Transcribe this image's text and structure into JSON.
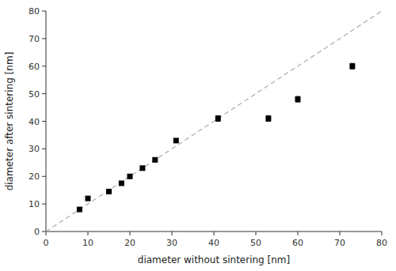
{
  "chart_data": {
    "type": "scatter",
    "xlabel": "diameter without sintering [nm]",
    "ylabel": "diameter after sintering [nm]",
    "xlim": [
      0,
      80
    ],
    "ylim": [
      0,
      80
    ],
    "xticks": [
      0,
      10,
      20,
      30,
      40,
      50,
      60,
      70,
      80
    ],
    "yticks": [
      0,
      10,
      20,
      30,
      40,
      50,
      60,
      70,
      80
    ],
    "grid": false,
    "series": [
      {
        "type": "line",
        "x": [
          0,
          80
        ],
        "values": [
          0,
          80
        ],
        "color": "#aaaaaa",
        "line_style": "dashed"
      },
      {
        "type": "scatter",
        "x": [
          8,
          10,
          15,
          18,
          20,
          23,
          26,
          31,
          41,
          53,
          60,
          73
        ],
        "values": [
          8,
          12,
          14.5,
          17.5,
          20,
          23,
          26,
          33,
          41,
          41,
          48,
          60
        ],
        "errors": [
          0,
          0,
          0,
          0,
          0,
          0,
          0,
          0,
          1,
          1,
          1,
          1
        ],
        "color": "#000000",
        "marker": "square"
      }
    ]
  }
}
